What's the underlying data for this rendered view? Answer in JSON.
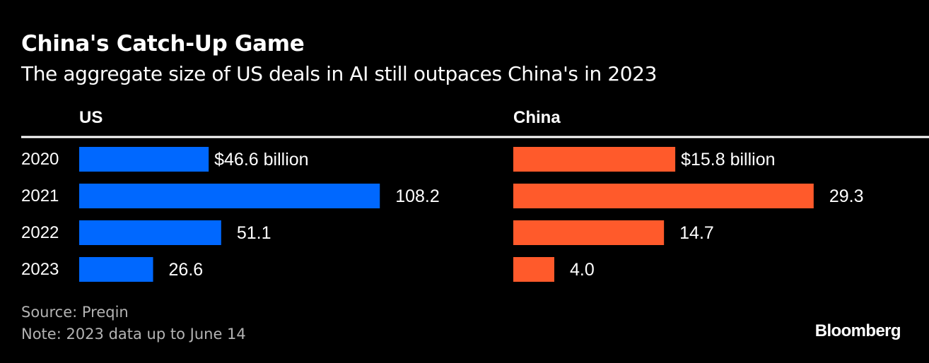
{
  "title": "China's Catch-Up Game",
  "subtitle": "The aggregate size of US deals in AI still outpaces China's in 2023",
  "source": "Source: Preqin",
  "note": "Note: 2023 data up to June 14",
  "brand": "Bloomberg",
  "chart_data": [
    {
      "type": "bar",
      "orientation": "horizontal",
      "panel_label": "US",
      "color": "#0068ff",
      "categories": [
        "2020",
        "2021",
        "2022",
        "2023"
      ],
      "values": [
        46.6,
        108.2,
        51.1,
        26.6
      ],
      "value_labels": [
        "$46.6 billion",
        "108.2",
        "51.1",
        "26.6"
      ],
      "unit": "billion USD"
    },
    {
      "type": "bar",
      "orientation": "horizontal",
      "panel_label": "China",
      "color": "#ff5a2b",
      "categories": [
        "2020",
        "2021",
        "2022",
        "2023"
      ],
      "values": [
        15.8,
        29.3,
        14.7,
        4.0
      ],
      "value_labels": [
        "$15.8 billion",
        "29.3",
        "14.7",
        "4.0"
      ],
      "unit": "billion USD"
    }
  ]
}
